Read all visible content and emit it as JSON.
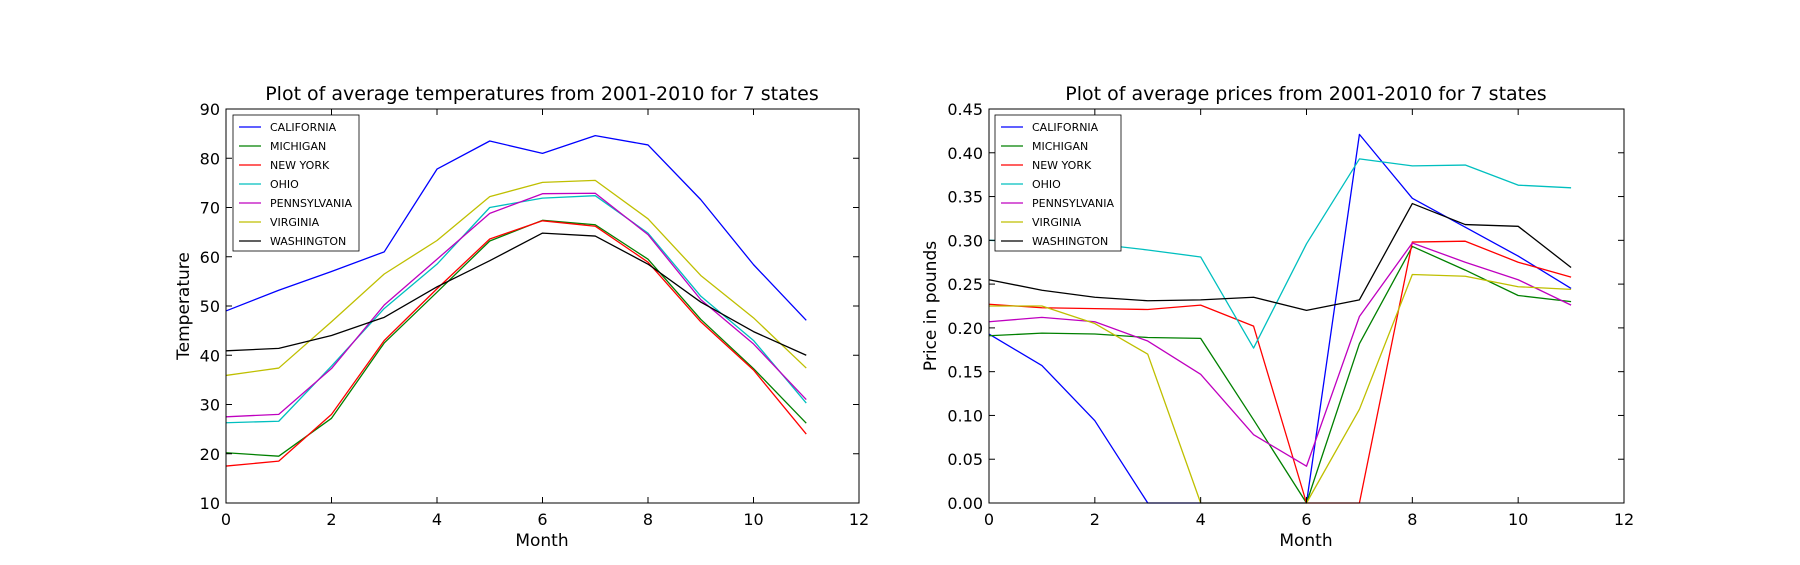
{
  "chart_data": [
    {
      "type": "line",
      "title": "Plot of average temperatures from 2001-2010 for 7 states",
      "xlabel": "Month",
      "ylabel": "Temperature",
      "xlim": [
        0,
        12
      ],
      "ylim": [
        10,
        90
      ],
      "xticks": [
        0,
        2,
        4,
        6,
        8,
        10,
        12
      ],
      "yticks": [
        10,
        20,
        30,
        40,
        50,
        60,
        70,
        80,
        90
      ],
      "ytick_format": 0,
      "grid": false,
      "legend": "upper left",
      "x": [
        0,
        1,
        2,
        3,
        4,
        5,
        6,
        7,
        8,
        9,
        10,
        11
      ],
      "series": [
        {
          "name": "CALIFORNIA",
          "color": "#0000ff",
          "values": [
            49.0,
            53.2,
            57.0,
            61.0,
            77.8,
            83.5,
            81.0,
            84.6,
            82.7,
            71.6,
            58.4,
            47.1
          ]
        },
        {
          "name": "MICHIGAN",
          "color": "#008000",
          "values": [
            20.2,
            19.5,
            27.2,
            42.5,
            52.8,
            63.2,
            67.4,
            66.5,
            59.5,
            47.3,
            37.3,
            26.2
          ]
        },
        {
          "name": "NEW YORK",
          "color": "#ff0000",
          "values": [
            17.5,
            18.5,
            28.0,
            43.0,
            53.5,
            63.6,
            67.3,
            66.2,
            58.9,
            46.8,
            37.0,
            24.0
          ]
        },
        {
          "name": "OHIO",
          "color": "#00bfbf",
          "values": [
            26.3,
            26.6,
            37.8,
            49.5,
            58.5,
            70.0,
            71.9,
            72.4,
            64.8,
            52.0,
            43.0,
            30.3
          ]
        },
        {
          "name": "PENNSYLVANIA",
          "color": "#bf00bf",
          "values": [
            27.5,
            28.0,
            37.3,
            50.2,
            59.5,
            68.8,
            72.8,
            72.9,
            64.5,
            51.3,
            42.3,
            31.0
          ]
        },
        {
          "name": "VIRGINIA",
          "color": "#bfbf00",
          "values": [
            35.9,
            37.4,
            46.8,
            56.5,
            63.3,
            72.2,
            75.1,
            75.5,
            67.7,
            56.2,
            47.6,
            37.4
          ]
        },
        {
          "name": "WASHINGTON",
          "color": "#000000",
          "values": [
            40.9,
            41.4,
            44.0,
            47.7,
            53.9,
            59.2,
            64.8,
            64.2,
            58.5,
            50.8,
            44.8,
            40.0
          ]
        }
      ]
    },
    {
      "type": "line",
      "title": "Plot of average prices from 2001-2010 for 7 states",
      "xlabel": "Month",
      "ylabel": "Price in pounds",
      "xlim": [
        0,
        12
      ],
      "ylim": [
        0,
        0.45
      ],
      "xticks": [
        0,
        2,
        4,
        6,
        8,
        10,
        12
      ],
      "yticks": [
        0,
        0.05,
        0.1,
        0.15,
        0.2,
        0.25,
        0.3,
        0.35,
        0.4,
        0.45
      ],
      "ytick_format": 2,
      "grid": false,
      "legend": "upper left",
      "x": [
        0,
        1,
        2,
        3,
        4,
        5,
        6,
        7,
        8,
        9,
        10,
        11
      ],
      "series": [
        {
          "name": "CALIFORNIA",
          "color": "#0000ff",
          "values": [
            0.193,
            0.157,
            0.094,
            0.0,
            0.0,
            0.0,
            0.0,
            0.421,
            0.348,
            0.315,
            0.282,
            0.245
          ]
        },
        {
          "name": "MICHIGAN",
          "color": "#008000",
          "values": [
            0.191,
            0.194,
            0.193,
            0.189,
            0.188,
            0.095,
            0.0,
            0.182,
            0.293,
            0.266,
            0.237,
            0.23
          ]
        },
        {
          "name": "NEW YORK",
          "color": "#ff0000",
          "values": [
            0.227,
            0.223,
            0.222,
            0.221,
            0.226,
            0.202,
            0.0,
            0.0,
            0.298,
            0.299,
            0.275,
            0.258
          ]
        },
        {
          "name": "OHIO",
          "color": "#00bfbf",
          "values": [
            0.3,
            0.298,
            0.296,
            0.289,
            0.281,
            0.177,
            0.296,
            0.393,
            0.385,
            0.386,
            0.363,
            0.36
          ]
        },
        {
          "name": "PENNSYLVANIA",
          "color": "#bf00bf",
          "values": [
            0.207,
            0.212,
            0.207,
            0.185,
            0.147,
            0.078,
            0.042,
            0.213,
            0.297,
            0.275,
            0.255,
            0.226
          ]
        },
        {
          "name": "VIRGINIA",
          "color": "#bfbf00",
          "values": [
            0.225,
            0.225,
            0.205,
            0.17,
            0.0,
            0.0,
            0.0,
            0.107,
            0.261,
            0.259,
            0.247,
            0.244
          ]
        },
        {
          "name": "WASHINGTON",
          "color": "#000000",
          "values": [
            0.255,
            0.243,
            0.235,
            0.231,
            0.232,
            0.235,
            0.22,
            0.232,
            0.342,
            0.318,
            0.316,
            0.269
          ]
        }
      ]
    }
  ]
}
